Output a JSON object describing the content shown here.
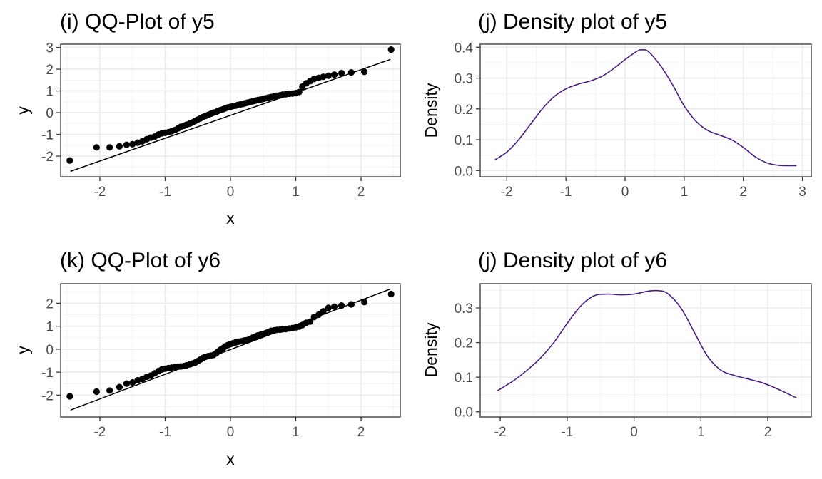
{
  "colors": {
    "points": "#000000",
    "density_line": "#4b1c86",
    "grid": "#ebebeb",
    "frame": "#333333"
  },
  "chart_data": [
    {
      "type": "scatter",
      "title": "(i) QQ-Plot of y5",
      "xlabel": "x",
      "ylabel": "y",
      "xlim": [
        -2.6,
        2.6
      ],
      "ylim": [
        -2.95,
        3.15
      ],
      "xticks": [
        -2,
        -1,
        0,
        1,
        2
      ],
      "yticks": [
        -2,
        -1,
        0,
        1,
        2,
        3
      ],
      "grid": true,
      "reference_line": {
        "x": [
          -2.45,
          2.45
        ],
        "y": [
          -2.7,
          2.45
        ]
      },
      "points": {
        "x": [
          -2.46,
          -2.05,
          -1.85,
          -1.7,
          -1.59,
          -1.5,
          -1.42,
          -1.35,
          -1.28,
          -1.22,
          -1.16,
          -1.1,
          -1.05,
          -1.0,
          -0.95,
          -0.9,
          -0.85,
          -0.8,
          -0.76,
          -0.71,
          -0.67,
          -0.62,
          -0.58,
          -0.54,
          -0.5,
          -0.46,
          -0.42,
          -0.38,
          -0.34,
          -0.3,
          -0.26,
          -0.22,
          -0.19,
          -0.15,
          -0.11,
          -0.08,
          -0.04,
          0.0,
          0.04,
          0.08,
          0.11,
          0.15,
          0.19,
          0.22,
          0.26,
          0.3,
          0.34,
          0.38,
          0.42,
          0.46,
          0.5,
          0.54,
          0.58,
          0.62,
          0.67,
          0.71,
          0.76,
          0.8,
          0.85,
          0.9,
          0.95,
          1.0,
          1.05,
          1.1,
          1.16,
          1.22,
          1.28,
          1.35,
          1.42,
          1.5,
          1.59,
          1.7,
          1.85,
          2.05,
          2.46
        ],
        "y": [
          -2.2,
          -1.6,
          -1.6,
          -1.55,
          -1.48,
          -1.45,
          -1.38,
          -1.32,
          -1.22,
          -1.15,
          -1.1,
          -1.0,
          -0.95,
          -0.93,
          -0.9,
          -0.85,
          -0.8,
          -0.72,
          -0.65,
          -0.6,
          -0.55,
          -0.5,
          -0.45,
          -0.38,
          -0.32,
          -0.26,
          -0.2,
          -0.15,
          -0.1,
          -0.05,
          0.0,
          0.03,
          0.08,
          0.12,
          0.16,
          0.2,
          0.24,
          0.27,
          0.3,
          0.32,
          0.35,
          0.38,
          0.4,
          0.43,
          0.46,
          0.49,
          0.52,
          0.55,
          0.58,
          0.6,
          0.63,
          0.66,
          0.69,
          0.72,
          0.75,
          0.78,
          0.8,
          0.83,
          0.85,
          0.87,
          0.88,
          0.9,
          0.95,
          1.2,
          1.35,
          1.45,
          1.55,
          1.6,
          1.65,
          1.7,
          1.75,
          1.82,
          1.85,
          1.88,
          2.9
        ]
      }
    },
    {
      "type": "line",
      "title": "(j) Density plot of y5",
      "xlabel": "",
      "ylabel": "Density",
      "xlim": [
        -2.45,
        3.15
      ],
      "ylim": [
        -0.02,
        0.41
      ],
      "xticks": [
        -2,
        -1,
        0,
        1,
        2,
        3
      ],
      "yticks": [
        0.0,
        0.1,
        0.2,
        0.3,
        0.4
      ],
      "ytick_labels": [
        "0.0",
        "0.1",
        "0.2",
        "0.3",
        "0.4"
      ],
      "grid": true,
      "x": [
        -2.2,
        -2.0,
        -1.8,
        -1.6,
        -1.4,
        -1.2,
        -1.0,
        -0.8,
        -0.6,
        -0.4,
        -0.2,
        0.0,
        0.2,
        0.3,
        0.4,
        0.6,
        0.8,
        1.0,
        1.2,
        1.4,
        1.6,
        1.8,
        2.0,
        2.2,
        2.4,
        2.6,
        2.8,
        2.9
      ],
      "y": [
        0.035,
        0.06,
        0.1,
        0.15,
        0.2,
        0.24,
        0.265,
        0.28,
        0.29,
        0.305,
        0.33,
        0.36,
        0.387,
        0.392,
        0.385,
        0.34,
        0.28,
        0.21,
        0.16,
        0.13,
        0.115,
        0.1,
        0.075,
        0.045,
        0.025,
        0.017,
        0.016,
        0.016
      ]
    },
    {
      "type": "scatter",
      "title": "(k) QQ-Plot of y6",
      "xlabel": "x",
      "ylabel": "y",
      "xlim": [
        -2.6,
        2.6
      ],
      "ylim": [
        -2.95,
        2.85
      ],
      "xticks": [
        -2,
        -1,
        0,
        1,
        2
      ],
      "yticks": [
        -2,
        -1,
        0,
        1,
        2
      ],
      "grid": true,
      "reference_line": {
        "x": [
          -2.45,
          2.45
        ],
        "y": [
          -2.65,
          2.62
        ]
      },
      "points": {
        "x": [
          -2.46,
          -2.05,
          -1.85,
          -1.7,
          -1.59,
          -1.5,
          -1.42,
          -1.35,
          -1.28,
          -1.22,
          -1.16,
          -1.1,
          -1.05,
          -1.0,
          -0.95,
          -0.9,
          -0.85,
          -0.8,
          -0.76,
          -0.71,
          -0.67,
          -0.62,
          -0.58,
          -0.54,
          -0.5,
          -0.46,
          -0.42,
          -0.38,
          -0.34,
          -0.3,
          -0.26,
          -0.22,
          -0.19,
          -0.15,
          -0.11,
          -0.08,
          -0.04,
          0.0,
          0.04,
          0.08,
          0.11,
          0.15,
          0.19,
          0.22,
          0.26,
          0.3,
          0.34,
          0.38,
          0.42,
          0.46,
          0.5,
          0.54,
          0.58,
          0.62,
          0.67,
          0.71,
          0.76,
          0.8,
          0.85,
          0.9,
          0.95,
          1.0,
          1.05,
          1.1,
          1.16,
          1.22,
          1.28,
          1.35,
          1.42,
          1.5,
          1.59,
          1.7,
          1.85,
          2.05,
          2.46
        ],
        "y": [
          -2.05,
          -1.85,
          -1.8,
          -1.65,
          -1.5,
          -1.45,
          -1.35,
          -1.3,
          -1.2,
          -1.15,
          -1.05,
          -0.95,
          -0.88,
          -0.85,
          -0.82,
          -0.8,
          -0.78,
          -0.76,
          -0.75,
          -0.73,
          -0.7,
          -0.66,
          -0.62,
          -0.58,
          -0.52,
          -0.45,
          -0.38,
          -0.33,
          -0.3,
          -0.28,
          -0.25,
          -0.18,
          -0.1,
          -0.02,
          0.05,
          0.12,
          0.18,
          0.22,
          0.26,
          0.3,
          0.32,
          0.34,
          0.36,
          0.38,
          0.4,
          0.44,
          0.5,
          0.55,
          0.6,
          0.63,
          0.66,
          0.7,
          0.75,
          0.8,
          0.82,
          0.84,
          0.85,
          0.87,
          0.88,
          0.9,
          0.92,
          0.95,
          0.98,
          1.05,
          1.15,
          1.2,
          1.4,
          1.5,
          1.65,
          1.8,
          1.85,
          1.9,
          1.95,
          2.05,
          2.4
        ]
      }
    },
    {
      "type": "line",
      "title": "(j) Density plot of y6",
      "xlabel": "",
      "ylabel": "Density",
      "xlim": [
        -2.3,
        2.65
      ],
      "ylim": [
        -0.015,
        0.37
      ],
      "xticks": [
        -2,
        -1,
        0,
        1,
        2
      ],
      "yticks": [
        0.0,
        0.1,
        0.2,
        0.3
      ],
      "ytick_labels": [
        "0.0",
        "0.1",
        "0.2",
        "0.3"
      ],
      "grid": true,
      "x": [
        -2.05,
        -1.8,
        -1.6,
        -1.4,
        -1.2,
        -1.0,
        -0.8,
        -0.6,
        -0.4,
        -0.2,
        0.0,
        0.2,
        0.35,
        0.5,
        0.7,
        0.9,
        1.1,
        1.3,
        1.5,
        1.7,
        1.9,
        2.1,
        2.3,
        2.43
      ],
      "y": [
        0.06,
        0.09,
        0.12,
        0.155,
        0.2,
        0.255,
        0.305,
        0.335,
        0.34,
        0.338,
        0.34,
        0.348,
        0.35,
        0.342,
        0.3,
        0.23,
        0.16,
        0.12,
        0.105,
        0.095,
        0.085,
        0.07,
        0.052,
        0.04
      ]
    }
  ]
}
